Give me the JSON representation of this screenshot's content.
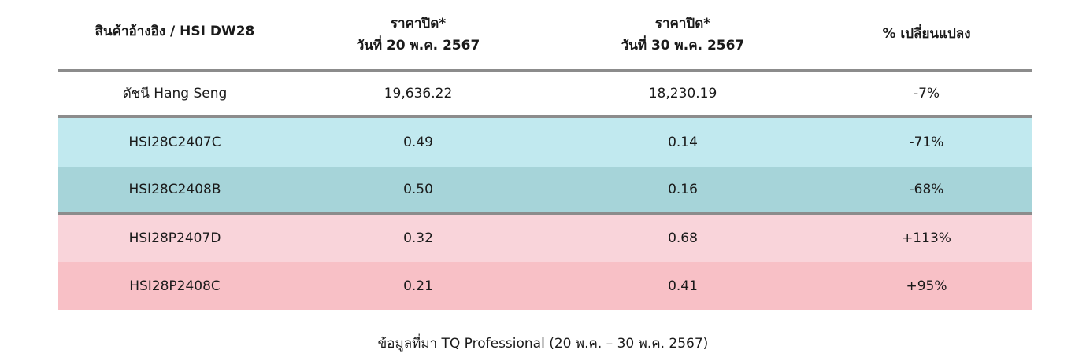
{
  "table": {
    "headers": [
      {
        "line1": "สินค้าอ้างอิง / HSI DW28",
        "line2": ""
      },
      {
        "line1": "ราคาปิด*",
        "line2": "วันที่ 20 พ.ค. 2567"
      },
      {
        "line1": "ราคาปิด*",
        "line2": "วันที่ 30 พ.ค. 2567"
      },
      {
        "line1": "% เปลี่ยนแปลง",
        "line2": ""
      }
    ],
    "rows": [
      {
        "name": "ดัชนี Hang Seng",
        "close_20": "19,636.22",
        "close_30": "18,230.19",
        "change": "-7%"
      },
      {
        "name": "HSI28C2407C",
        "close_20": "0.49",
        "close_30": "0.14",
        "change": "-71%"
      },
      {
        "name": "HSI28C2408B",
        "close_20": "0.50",
        "close_30": "0.16",
        "change": "-68%"
      },
      {
        "name": "HSI28P2407D",
        "close_20": "0.32",
        "close_30": "0.68",
        "change": "+113%"
      },
      {
        "name": "HSI28P2408C",
        "close_20": "0.21",
        "close_30": "0.41",
        "change": "+95%"
      }
    ]
  },
  "source": "ข้อมูลที่มา TQ Professional (20 พ.ค. – 30 พ.ค. 2567)",
  "colors": {
    "call_light": "#c1e9ef",
    "call_dark": "#a6d4d9",
    "put_light": "#f9d4da",
    "put_dark": "#f8c0c6",
    "divider": "#8c8c8c"
  }
}
